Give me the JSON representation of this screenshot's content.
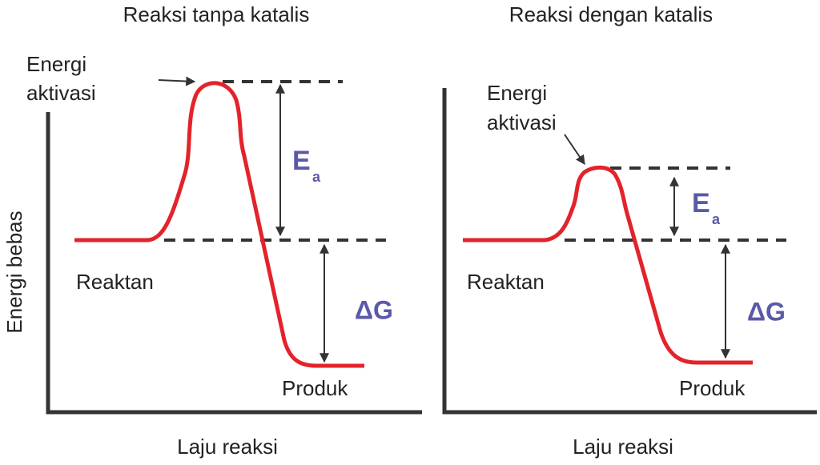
{
  "y_axis_label": "Energi bebas",
  "panels": [
    {
      "title": "Reaksi tanpa katalis",
      "activation_label": [
        "Energi",
        "aktivasi"
      ],
      "ea_label": {
        "main": "E",
        "sub": "a"
      },
      "delta_g_label": "ΔG",
      "reactant_label": "Reaktan",
      "product_label": "Produk",
      "x_axis_label": "Laju reaksi"
    },
    {
      "title": "Reaksi dengan katalis",
      "activation_label": [
        "Energi",
        "aktivasi"
      ],
      "ea_label": {
        "main": "E",
        "sub": "a"
      },
      "delta_g_label": "ΔG",
      "reactant_label": "Reaktan",
      "product_label": "Produk",
      "x_axis_label": "Laju reaksi"
    }
  ]
}
